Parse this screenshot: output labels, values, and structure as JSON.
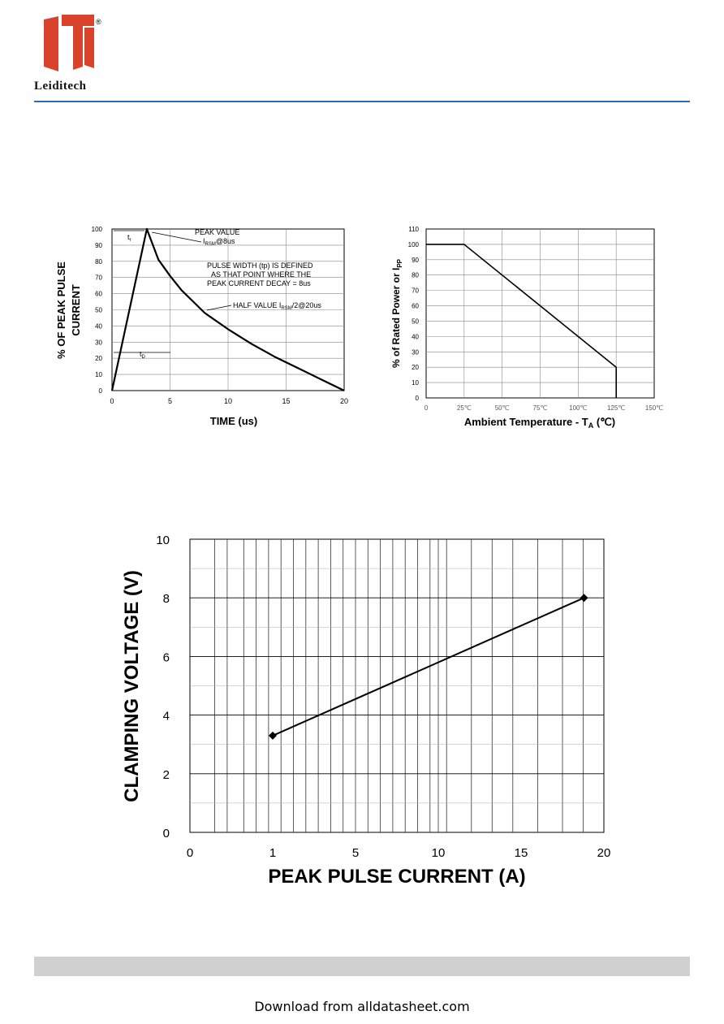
{
  "header": {
    "brand_name": "Leiditech",
    "registered_mark": "®",
    "accent_color": "#2a6cc0",
    "logo_color": "#d9432b"
  },
  "footer": {
    "download_text": "Download from alldatasheet.com"
  },
  "chart_data": [
    {
      "id": "pulse-waveform",
      "type": "line",
      "xlabel": "TIME (us)",
      "ylabel_line1": "% OF PEAK PULSE",
      "ylabel_line2": "CURRENT",
      "xlim": [
        0,
        20
      ],
      "ylim": [
        0,
        100
      ],
      "x_ticks": [
        "0",
        "5",
        "10",
        "15",
        "20"
      ],
      "y_ticks": [
        "0",
        "10",
        "20",
        "30",
        "40",
        "50",
        "60",
        "70",
        "80",
        "90",
        "100"
      ],
      "grid": true,
      "series": [
        {
          "x": [
            0,
            3,
            4,
            5,
            6,
            7,
            8,
            10,
            12,
            14,
            16,
            18,
            20
          ],
          "y": [
            0,
            100,
            81,
            71,
            62,
            55,
            48,
            38,
            29,
            21,
            14,
            7,
            0
          ]
        }
      ],
      "annotations": {
        "tr_label": "t",
        "tr_sub": "r",
        "peak_value": "PEAK VALUE",
        "peak_i": "I",
        "peak_sub": "RSM",
        "peak_rest": "@8us",
        "pulse_line1": "PULSE WIDTH (tp) IS DEFINED",
        "pulse_line2": "AS THAT POINT WHERE THE",
        "pulse_line3": "PEAK CURRENT DECAY = 8us",
        "half_value": "HALF VALUE I",
        "half_sub": "RSM",
        "half_rest": "/2@20us",
        "td_label": "t",
        "td_sub": "D"
      }
    },
    {
      "id": "power-derating",
      "type": "line",
      "xlabel": "Ambient Temperature - T",
      "xlabel_sub": "A",
      "xlabel_unit": " (℃)",
      "ylabel": "% of Rated Power or I",
      "ylabel_sub": "PP",
      "xlim": [
        0,
        150
      ],
      "ylim": [
        0,
        110
      ],
      "x_ticks": [
        "0",
        "25℃",
        "50℃",
        "75℃",
        "100℃",
        "125℃",
        "150℃"
      ],
      "y_ticks": [
        "0",
        "10",
        "20",
        "30",
        "40",
        "50",
        "60",
        "70",
        "80",
        "90",
        "100",
        "110"
      ],
      "grid": true,
      "series": [
        {
          "x": [
            0,
            25,
            125,
            125
          ],
          "y": [
            100,
            100,
            20,
            0
          ]
        }
      ]
    },
    {
      "id": "clamping-voltage",
      "type": "line",
      "xlabel": "PEAK PULSE CURRENT (A)",
      "ylabel": "CLAMPING VOLTAGE (V)",
      "x_ticks": [
        "0",
        "1",
        "5",
        "10",
        "15",
        "20"
      ],
      "y_ticks": [
        "0",
        "2",
        "4",
        "6",
        "8",
        "10"
      ],
      "grid": true,
      "series": [
        {
          "x": [
            1,
            18.8
          ],
          "y": [
            3.3,
            8
          ]
        }
      ],
      "marker": "diamond"
    }
  ]
}
